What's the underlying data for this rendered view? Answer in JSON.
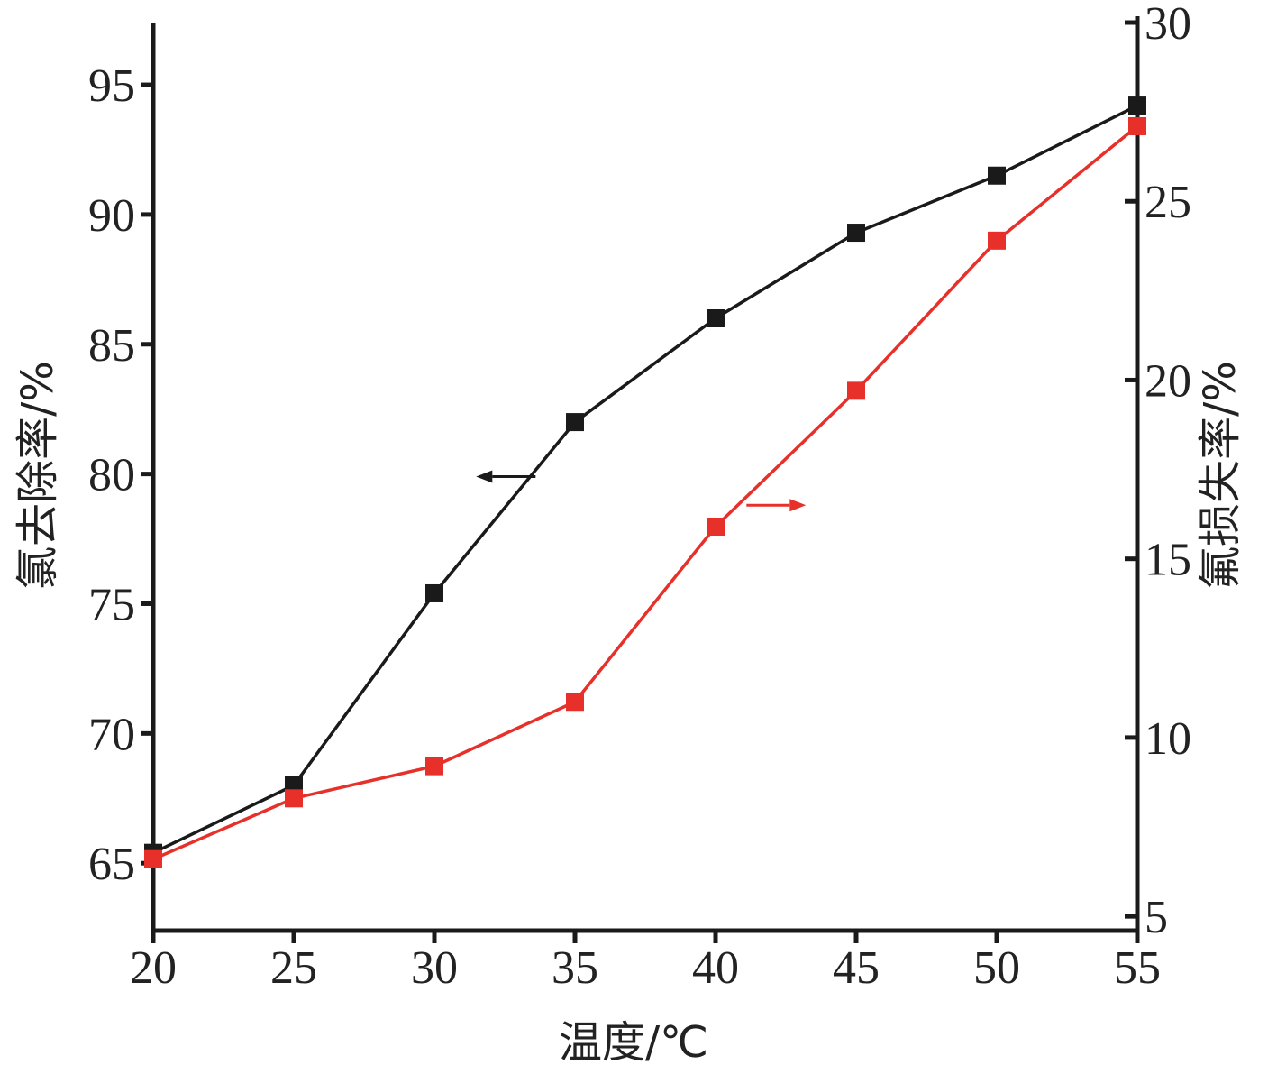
{
  "chart_data": {
    "type": "line",
    "title": "",
    "xlabel": "温度/℃",
    "ylabel": "氯去除率/%",
    "y2label": "氟损失率/%",
    "x": [
      20,
      25,
      30,
      35,
      40,
      45,
      50,
      55
    ],
    "xlim": [
      20,
      55
    ],
    "xticks": [
      "20",
      "25",
      "30",
      "35",
      "40",
      "45",
      "50",
      "55"
    ],
    "ylim": [
      62.4,
      97.4
    ],
    "yticks": [
      "65",
      "70",
      "75",
      "80",
      "85",
      "90",
      "95"
    ],
    "y2lim": [
      4.6,
      30
    ],
    "y2ticks": [
      "5",
      "10",
      "15",
      "20",
      "25",
      "30"
    ],
    "grid": false,
    "legend": "none",
    "series": [
      {
        "axis": "left",
        "color": "#1a1a1a",
        "marker": "square",
        "values": [
          65.4,
          68.0,
          75.4,
          82.0,
          86.0,
          89.3,
          91.5,
          94.2
        ]
      },
      {
        "axis": "right",
        "color": "#e8302a",
        "marker": "square",
        "values": [
          6.6,
          8.3,
          9.2,
          11.0,
          15.9,
          19.7,
          23.9,
          27.1
        ]
      }
    ],
    "annotations": [
      {
        "type": "arrow",
        "direction": "left",
        "series": 0,
        "at": [
          33.6,
          79.9
        ],
        "color": "#1a1a1a"
      },
      {
        "type": "arrow",
        "direction": "right",
        "series": 1,
        "at": [
          41.1,
          16.5
        ],
        "color": "#e8302a"
      }
    ]
  }
}
